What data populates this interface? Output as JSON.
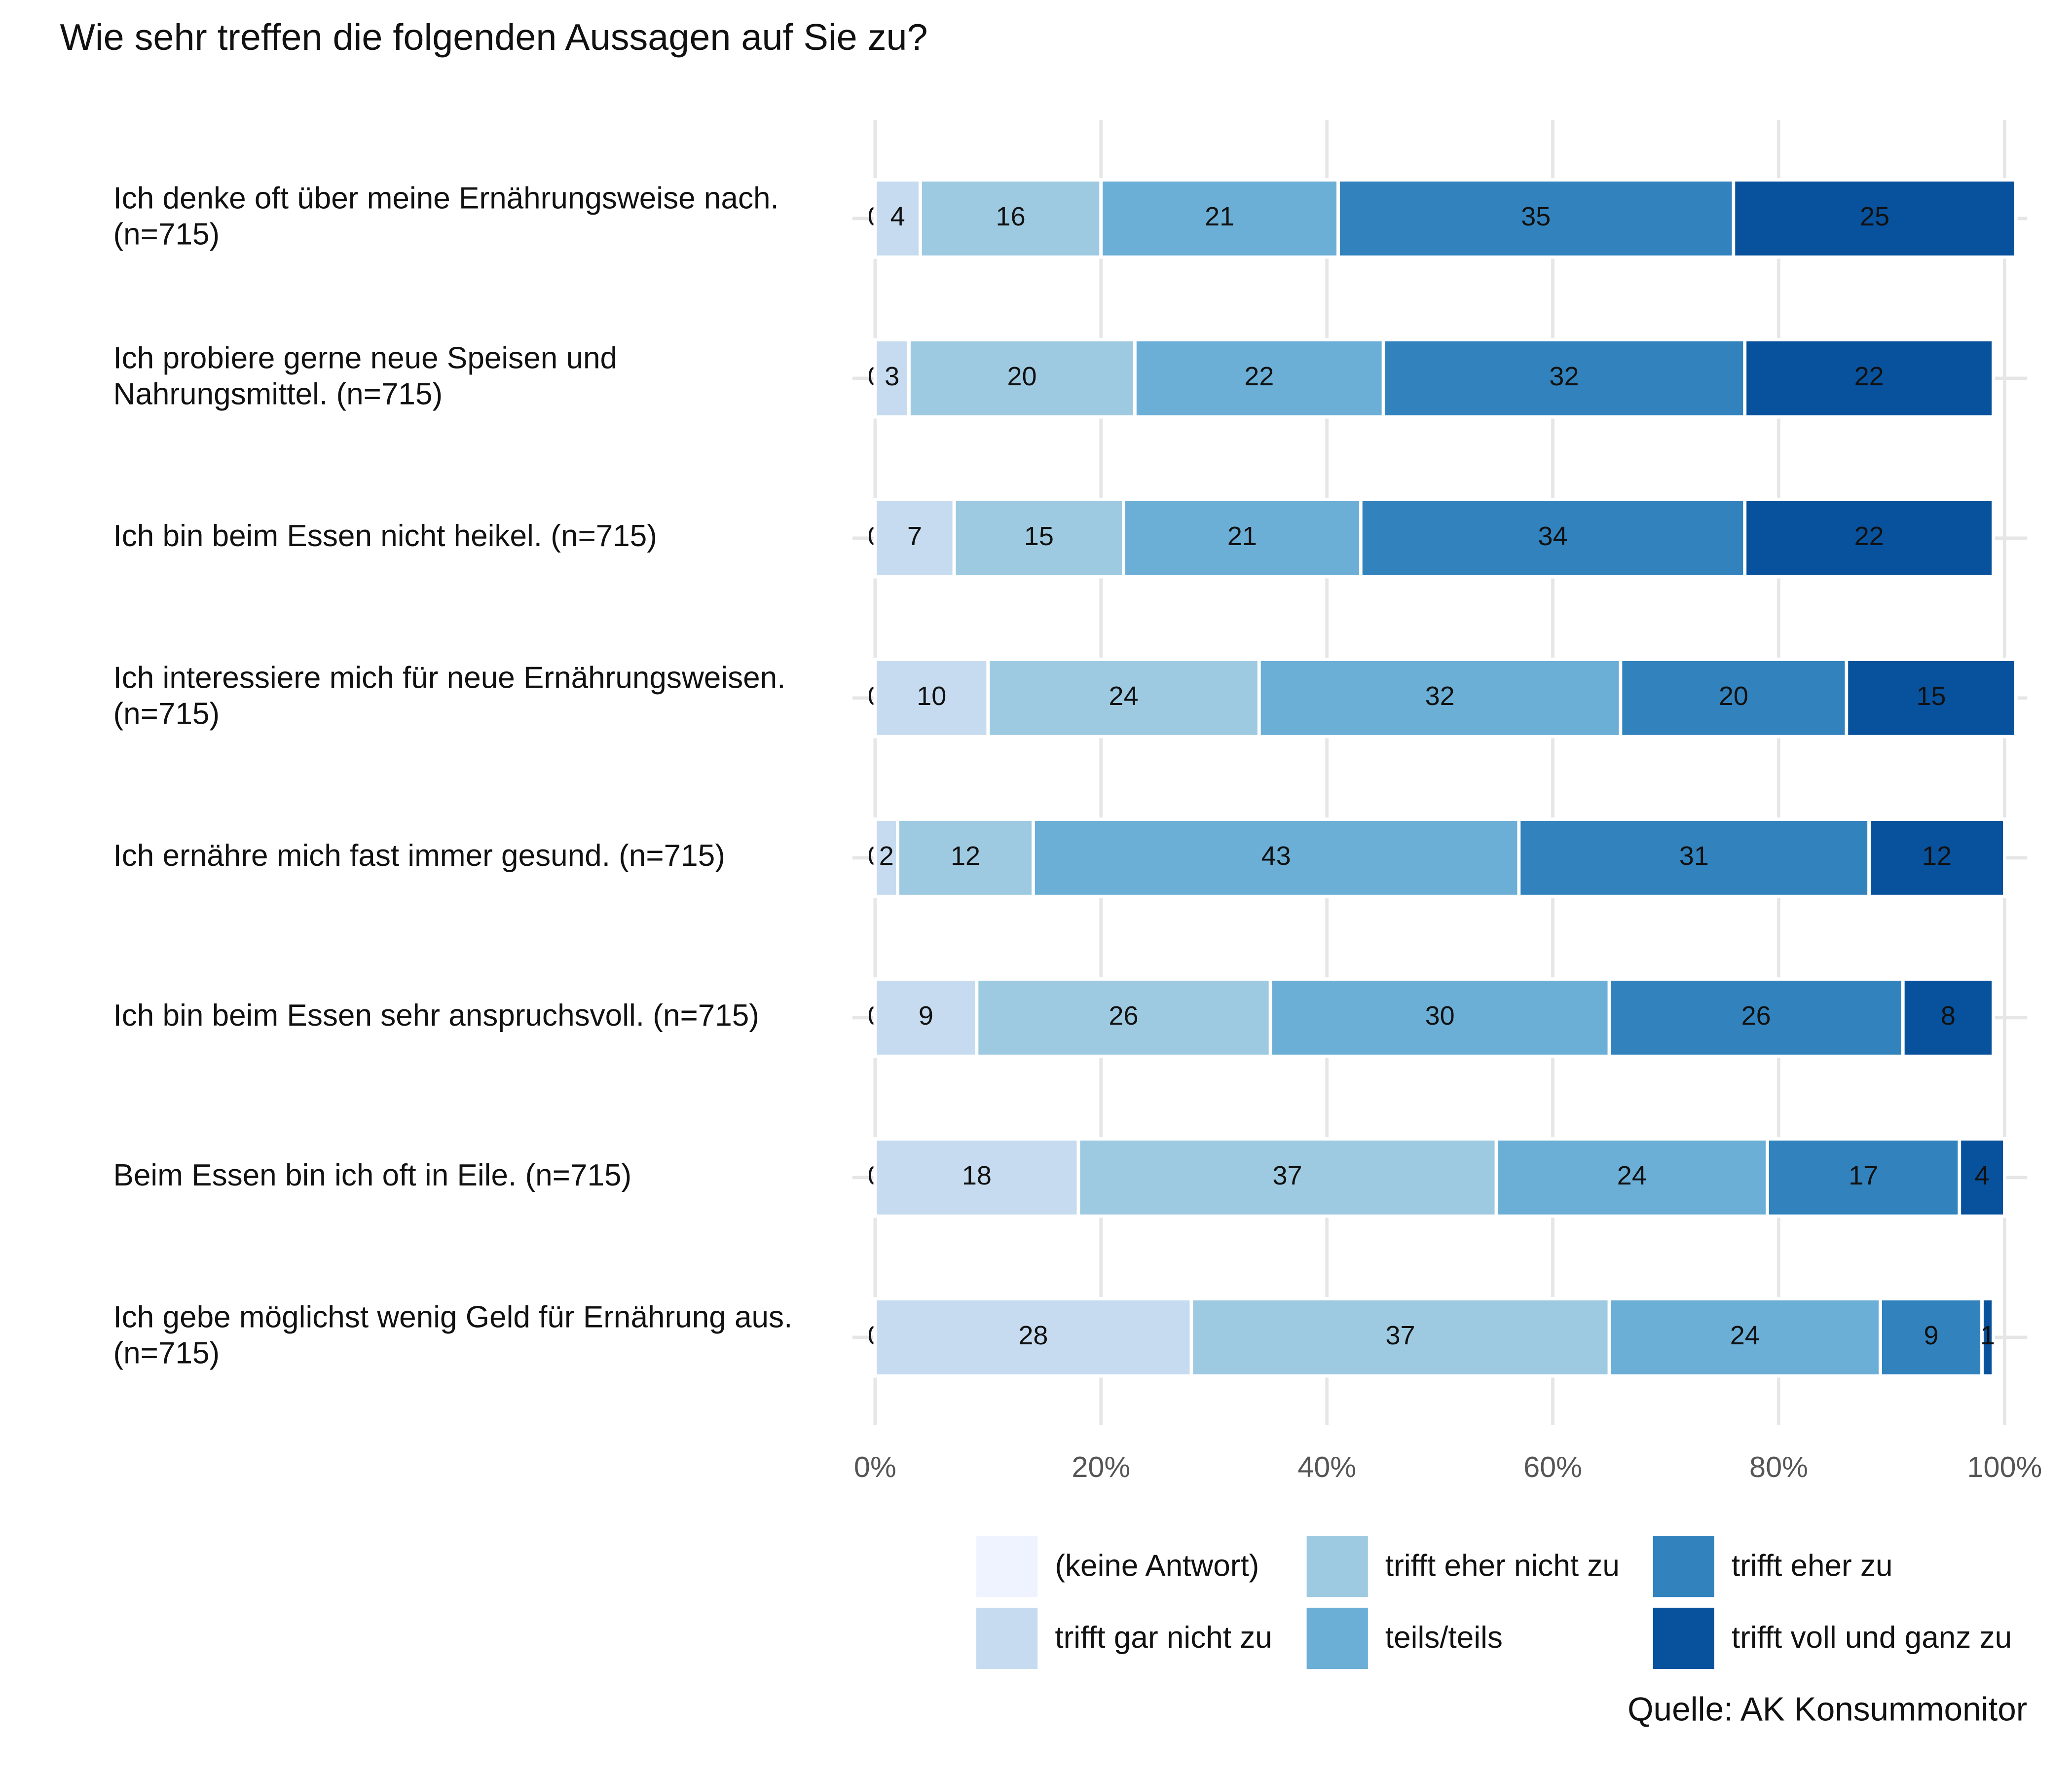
{
  "chart_data": {
    "type": "stacked_barh",
    "title": "Wie sehr treffen die folgenden Aussagen auf Sie zu?",
    "source": "Quelle: AK Konsummonitor",
    "categories": [
      "Ich denke oft über meine Ernährungsweise nach.\n(n=715)",
      "Ich probiere gerne neue Speisen und\nNahrungsmittel. (n=715)",
      "Ich bin beim Essen nicht heikel. (n=715)",
      "Ich interessiere mich für neue Ernährungsweisen.\n(n=715)",
      "Ich ernähre mich fast immer gesund. (n=715)",
      "Ich bin beim Essen sehr anspruchsvoll. (n=715)",
      "Beim Essen bin ich oft in Eile. (n=715)",
      "Ich gebe möglichst wenig Geld für Ernährung aus.\n(n=715)"
    ],
    "series": [
      {
        "name": "(keine Antwort)",
        "color": "#eff3ff",
        "values": [
          0,
          0,
          0,
          0,
          0,
          0,
          0,
          0
        ]
      },
      {
        "name": "trifft gar nicht zu",
        "color": "#c6dbef",
        "values": [
          4,
          3,
          7,
          10,
          2,
          9,
          18,
          28
        ]
      },
      {
        "name": "trifft eher nicht zu",
        "color": "#9ecae1",
        "values": [
          16,
          20,
          15,
          24,
          12,
          26,
          37,
          37
        ]
      },
      {
        "name": "teils/teils",
        "color": "#6baed6",
        "values": [
          21,
          22,
          21,
          32,
          43,
          30,
          24,
          24
        ]
      },
      {
        "name": "trifft eher zu",
        "color": "#3182bd",
        "values": [
          35,
          32,
          34,
          20,
          31,
          26,
          17,
          9
        ]
      },
      {
        "name": "trifft voll und ganz zu",
        "color": "#08519c",
        "values": [
          25,
          22,
          22,
          15,
          12,
          8,
          4,
          1
        ]
      }
    ],
    "xlim": [
      0,
      100
    ],
    "xticks": [
      {
        "value": 0,
        "label": "0%"
      },
      {
        "value": 20,
        "label": "20%"
      },
      {
        "value": 40,
        "label": "40%"
      },
      {
        "value": 60,
        "label": "60%"
      },
      {
        "value": 80,
        "label": "80%"
      },
      {
        "value": 100,
        "label": "100%"
      }
    ],
    "grid": true
  }
}
